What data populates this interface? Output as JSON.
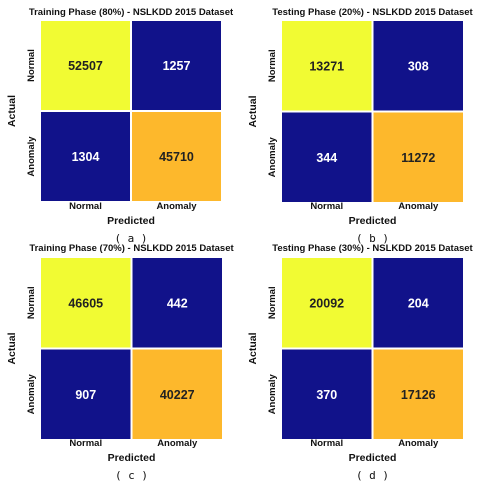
{
  "colors": {
    "high": "#f1fb33",
    "mid": "#fdb82c",
    "low": "#11128a",
    "grid": "#ffffff"
  },
  "chart_data": [
    {
      "type": "heatmap",
      "title": "Training Phase (80%) - NSLKDD 2015 Dataset",
      "xlabel": "Predicted",
      "ylabel": "Actual",
      "x_categories": [
        "Normal",
        "Anomaly"
      ],
      "y_categories": [
        "Normal",
        "Anomaly"
      ],
      "values": [
        [
          52507,
          1257
        ],
        [
          1304,
          45710
        ]
      ],
      "caption": "( a )"
    },
    {
      "type": "heatmap",
      "title": "Testing Phase (20%) - NSLKDD 2015 Dataset",
      "xlabel": "Predicted",
      "ylabel": "Actual",
      "x_categories": [
        "Normal",
        "Anomaly"
      ],
      "y_categories": [
        "Normal",
        "Anomaly"
      ],
      "values": [
        [
          13271,
          308
        ],
        [
          344,
          11272
        ]
      ],
      "caption": "( b )"
    },
    {
      "type": "heatmap",
      "title": "Training Phase (70%) - NSLKDD 2015 Dataset",
      "xlabel": "Predicted",
      "ylabel": "Actual",
      "x_categories": [
        "Normal",
        "Anomaly"
      ],
      "y_categories": [
        "Normal",
        "Anomaly"
      ],
      "values": [
        [
          46605,
          442
        ],
        [
          907,
          40227
        ]
      ],
      "caption": "( c )"
    },
    {
      "type": "heatmap",
      "title": "Testing Phase (30%) - NSLKDD 2015 Dataset",
      "xlabel": "Predicted",
      "ylabel": "Actual",
      "x_categories": [
        "Normal",
        "Anomaly"
      ],
      "y_categories": [
        "Normal",
        "Anomaly"
      ],
      "values": [
        [
          20092,
          204
        ],
        [
          370,
          17126
        ]
      ],
      "caption": "( d )"
    }
  ]
}
